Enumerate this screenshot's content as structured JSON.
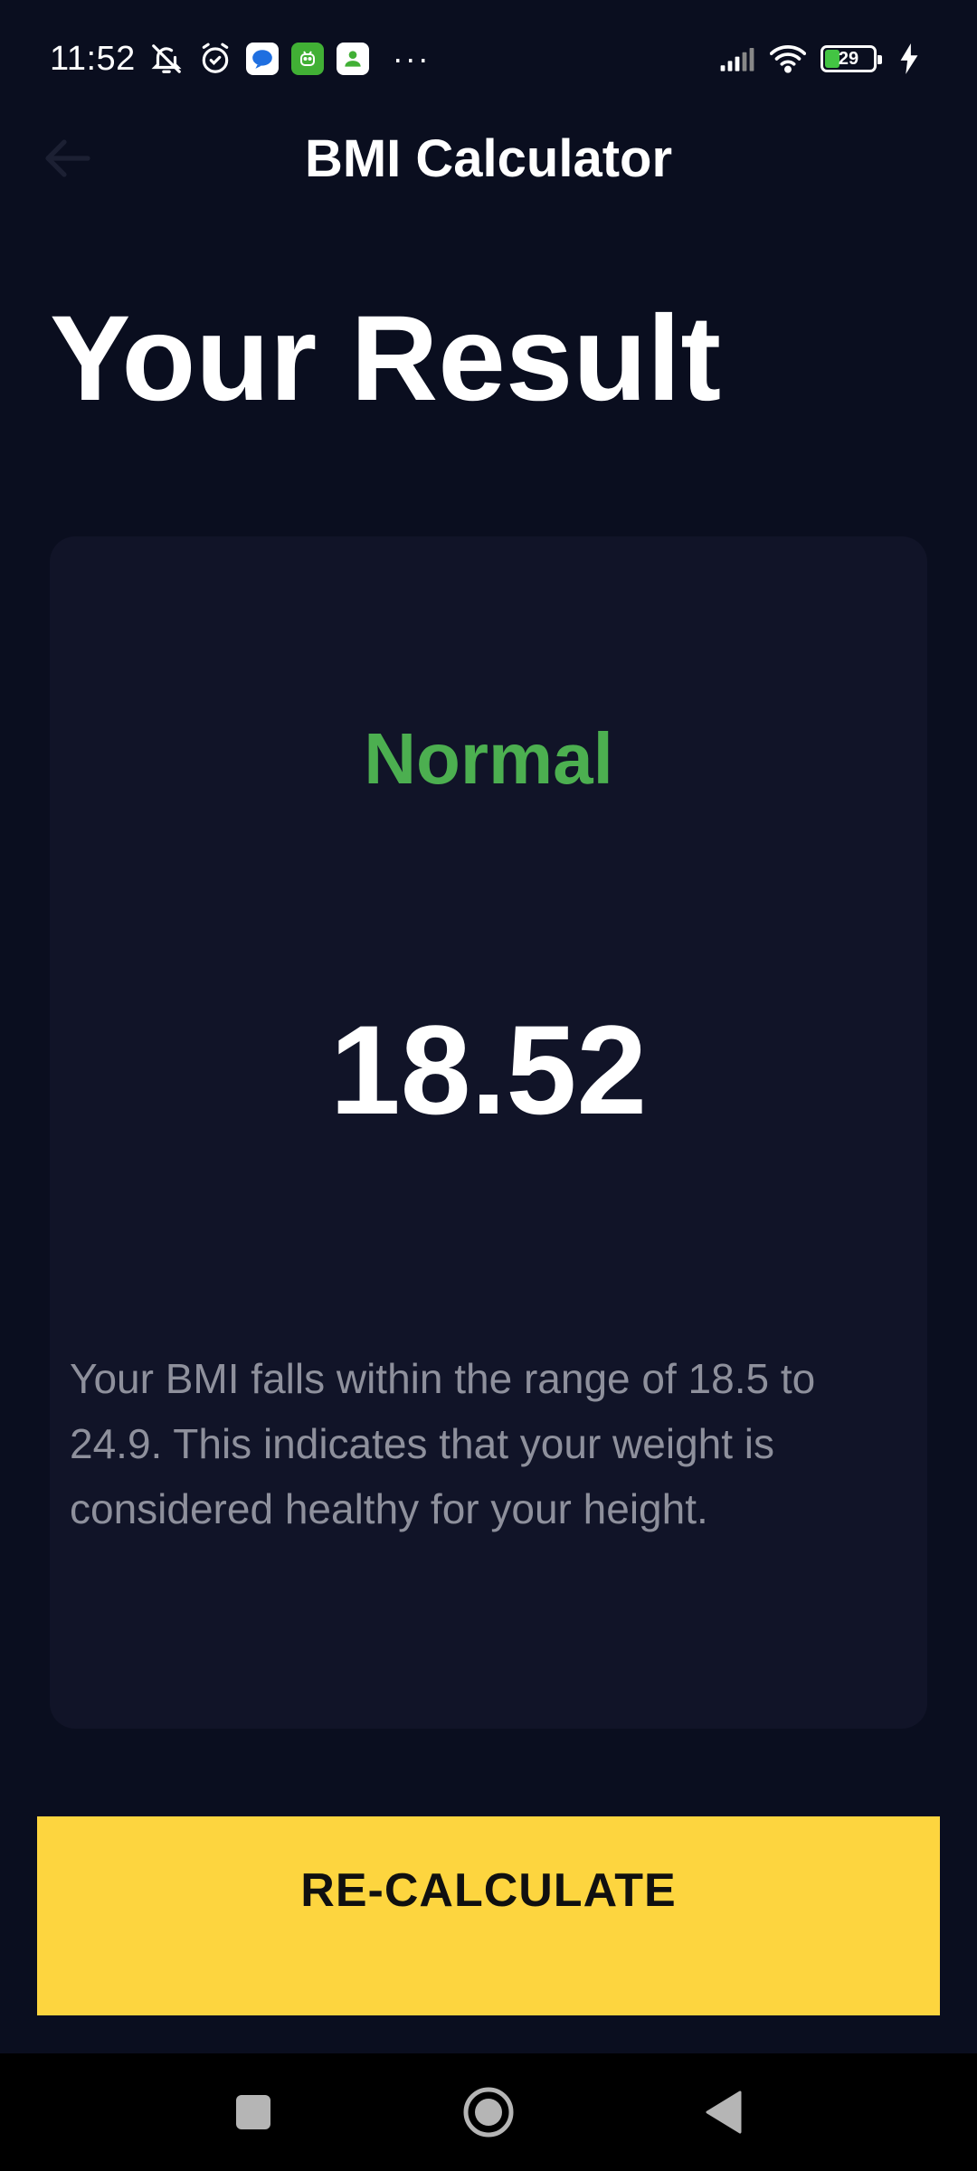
{
  "status_bar": {
    "time": "11:52",
    "battery_level": "29",
    "battery_fraction": 0.29,
    "icons": [
      "bell-off-icon",
      "alarm-icon",
      "messages-app-icon",
      "android-app-icon",
      "contacts-app-icon",
      "more-dots-icon",
      "signal-icon",
      "wifi-icon",
      "battery-icon",
      "charging-icon"
    ],
    "more": "···"
  },
  "app_bar": {
    "title": "BMI Calculator",
    "back_icon": "arrow-left-icon"
  },
  "page": {
    "heading": "Your Result"
  },
  "result": {
    "status": "Normal",
    "status_color": "#4caf50",
    "value": "18.52",
    "description": "Your BMI falls within the range of 18.5 to 24.9. This indicates that your weight is considered healthy for your height."
  },
  "actions": {
    "recalculate_label": "RE-CALCULATE",
    "button_color": "#fdd53f"
  },
  "nav_bar": {
    "icons": [
      "recents-square-icon",
      "home-circle-icon",
      "back-triangle-icon"
    ]
  }
}
